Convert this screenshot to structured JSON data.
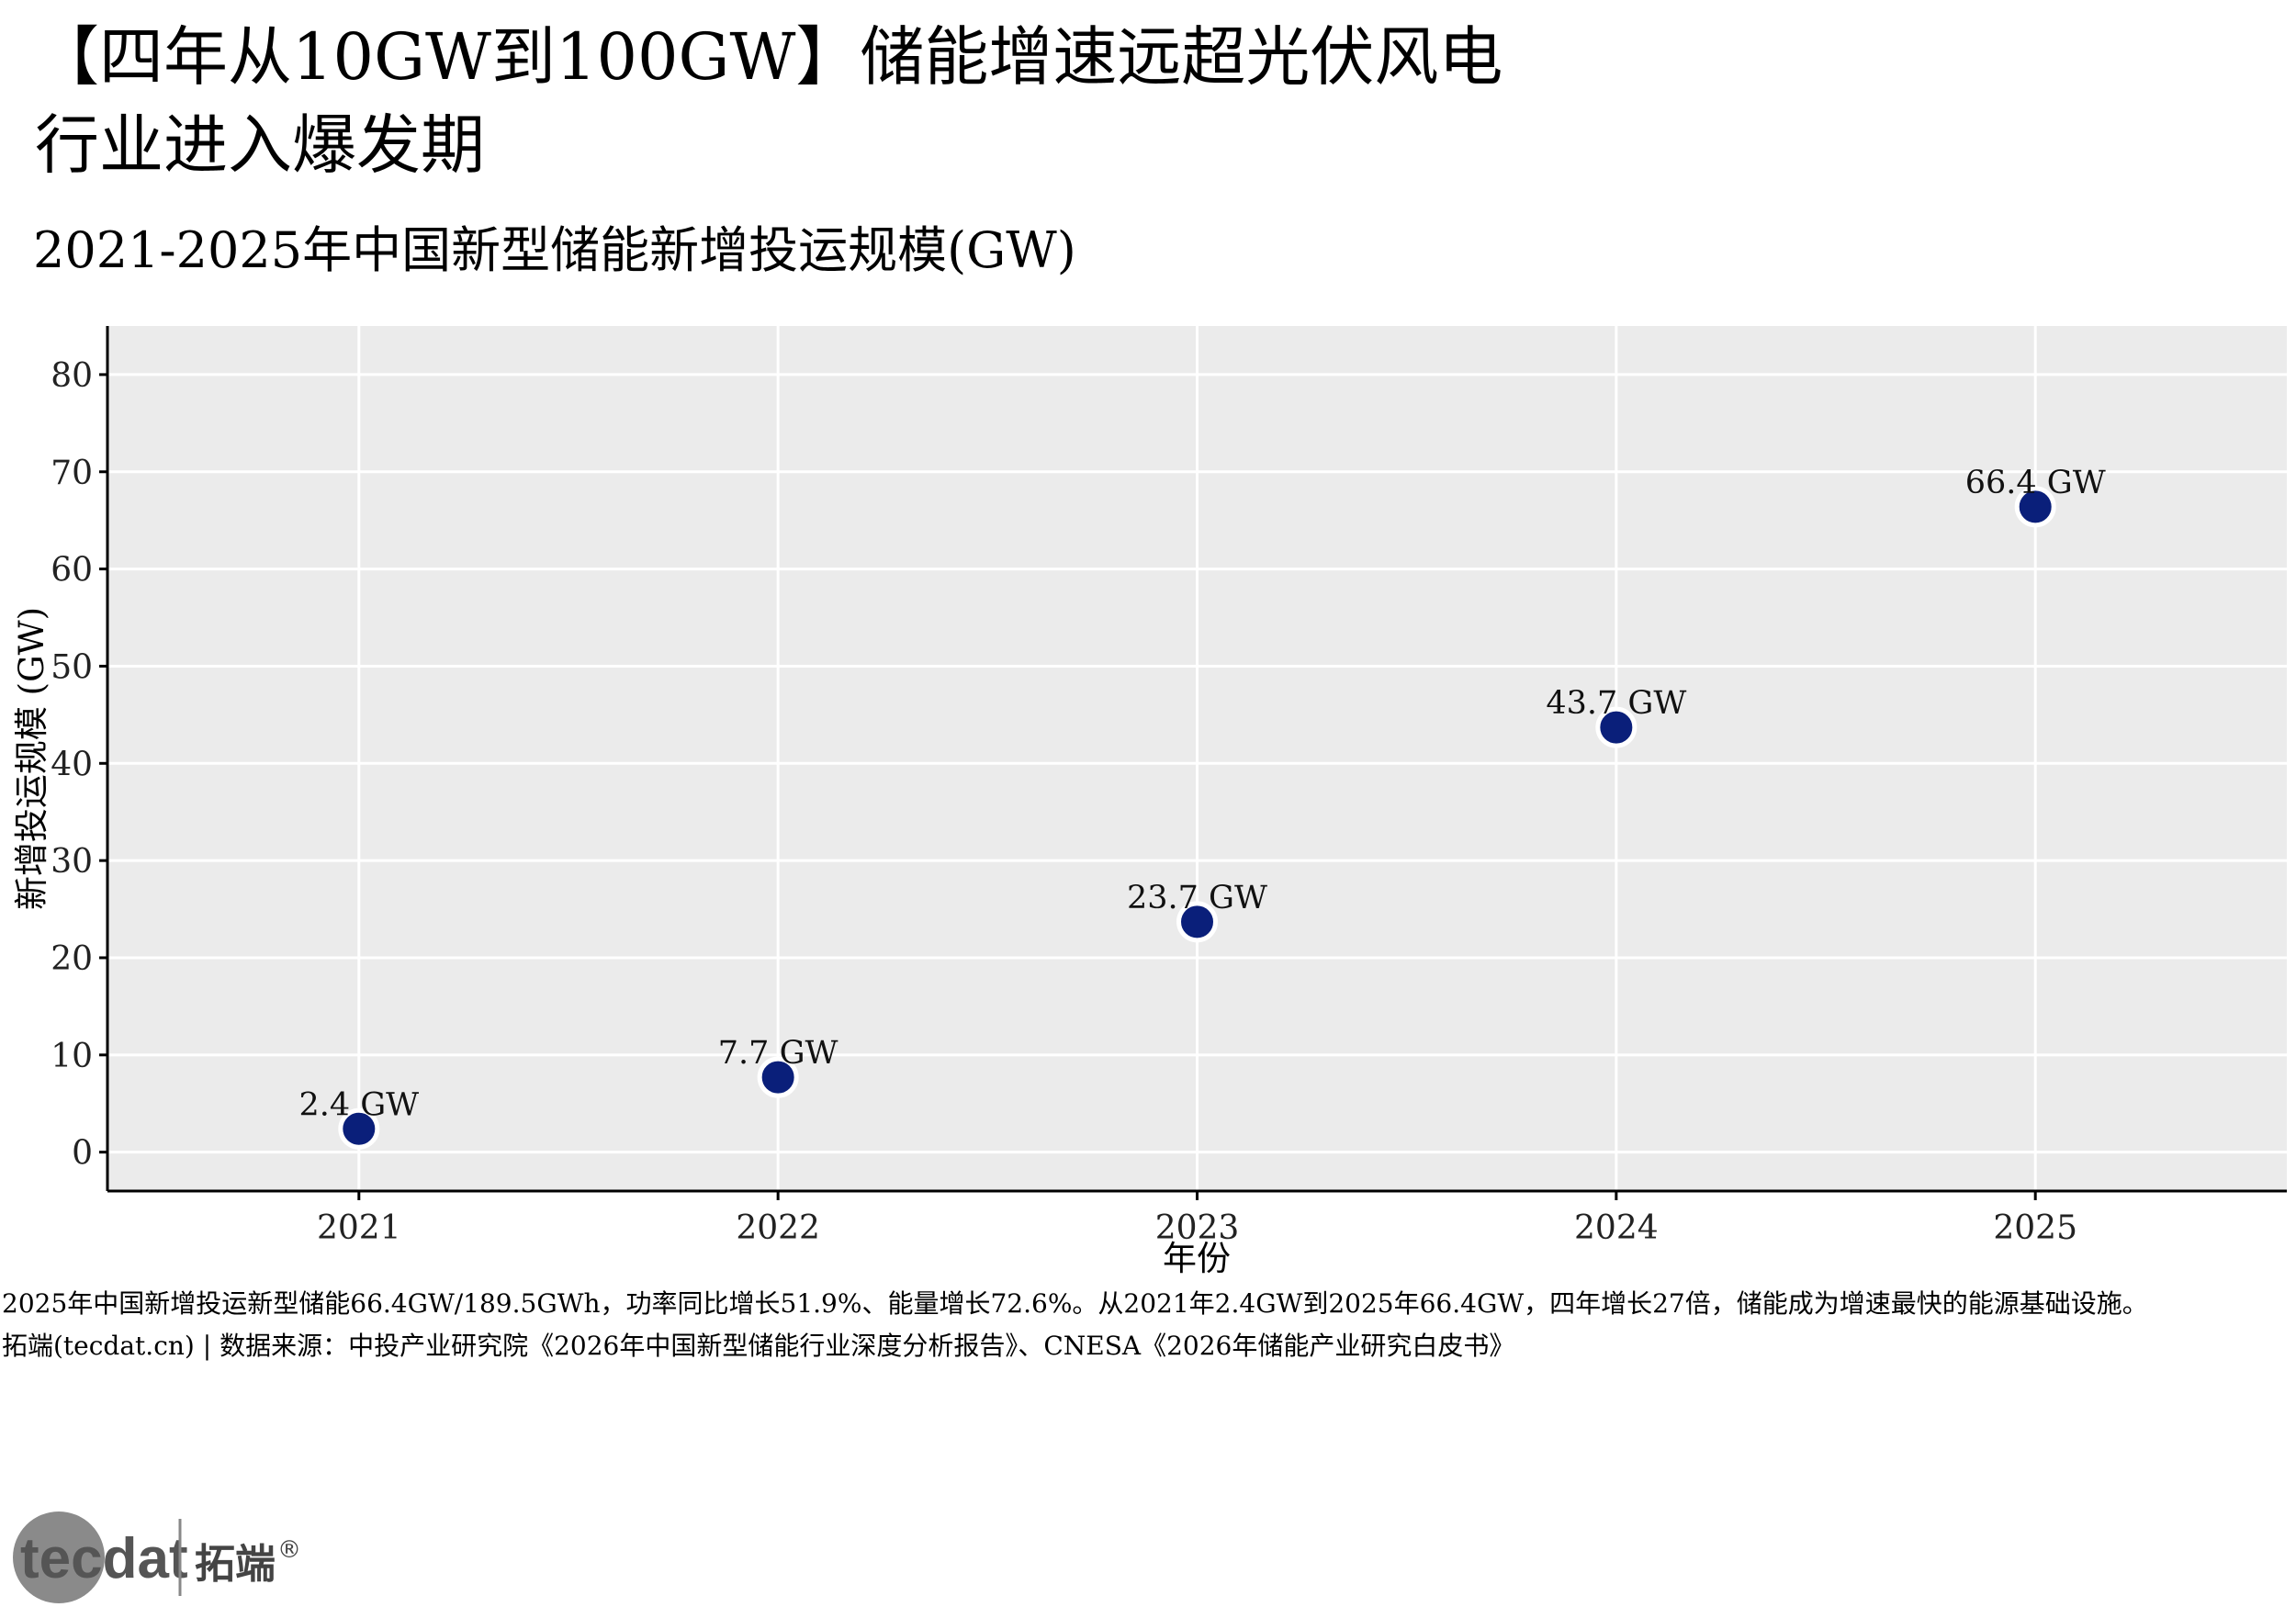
{
  "header": {
    "title_line1": "【四年从10GW到100GW】储能增速远超光伏风电",
    "title_line2": "行业进入爆发期",
    "subtitle": "2021-2025年中国新型储能新增投运规模(GW)"
  },
  "chart_data": {
    "type": "scatter",
    "categories": [
      "2021",
      "2022",
      "2023",
      "2024",
      "2025"
    ],
    "values": [
      2.4,
      7.7,
      23.7,
      43.7,
      66.4
    ],
    "data_labels": [
      "2.4 GW",
      "7.7 GW",
      "23.7 GW",
      "43.7 GW",
      "66.4 GW"
    ],
    "xlabel": "年份",
    "ylabel": "新增投运规模 (GW)",
    "ylim": [
      -4,
      85
    ],
    "yticks": [
      0,
      10,
      20,
      30,
      40,
      50,
      60,
      70,
      80
    ],
    "grid": true,
    "panel_color": "#ebebeb",
    "point_color": "#0a1f7a"
  },
  "caption": {
    "line1": "2025年中国新增投运新型储能66.4GW/189.5GWh，功率同比增长51.9%、能量增长72.6%。从2021年2.4GW到2025年66.4GW，四年增长27倍，储能成为增速最快的能源基础设施。",
    "line2": "拓端(tecdat.cn) | 数据来源：中投产业研究院《2026年中国新型储能行业深度分析报告》、CNESA《2026年储能产业研究白皮书》"
  },
  "logo": {
    "wordmark": "tecdat",
    "brand_cn": "拓端",
    "registered": "®"
  }
}
